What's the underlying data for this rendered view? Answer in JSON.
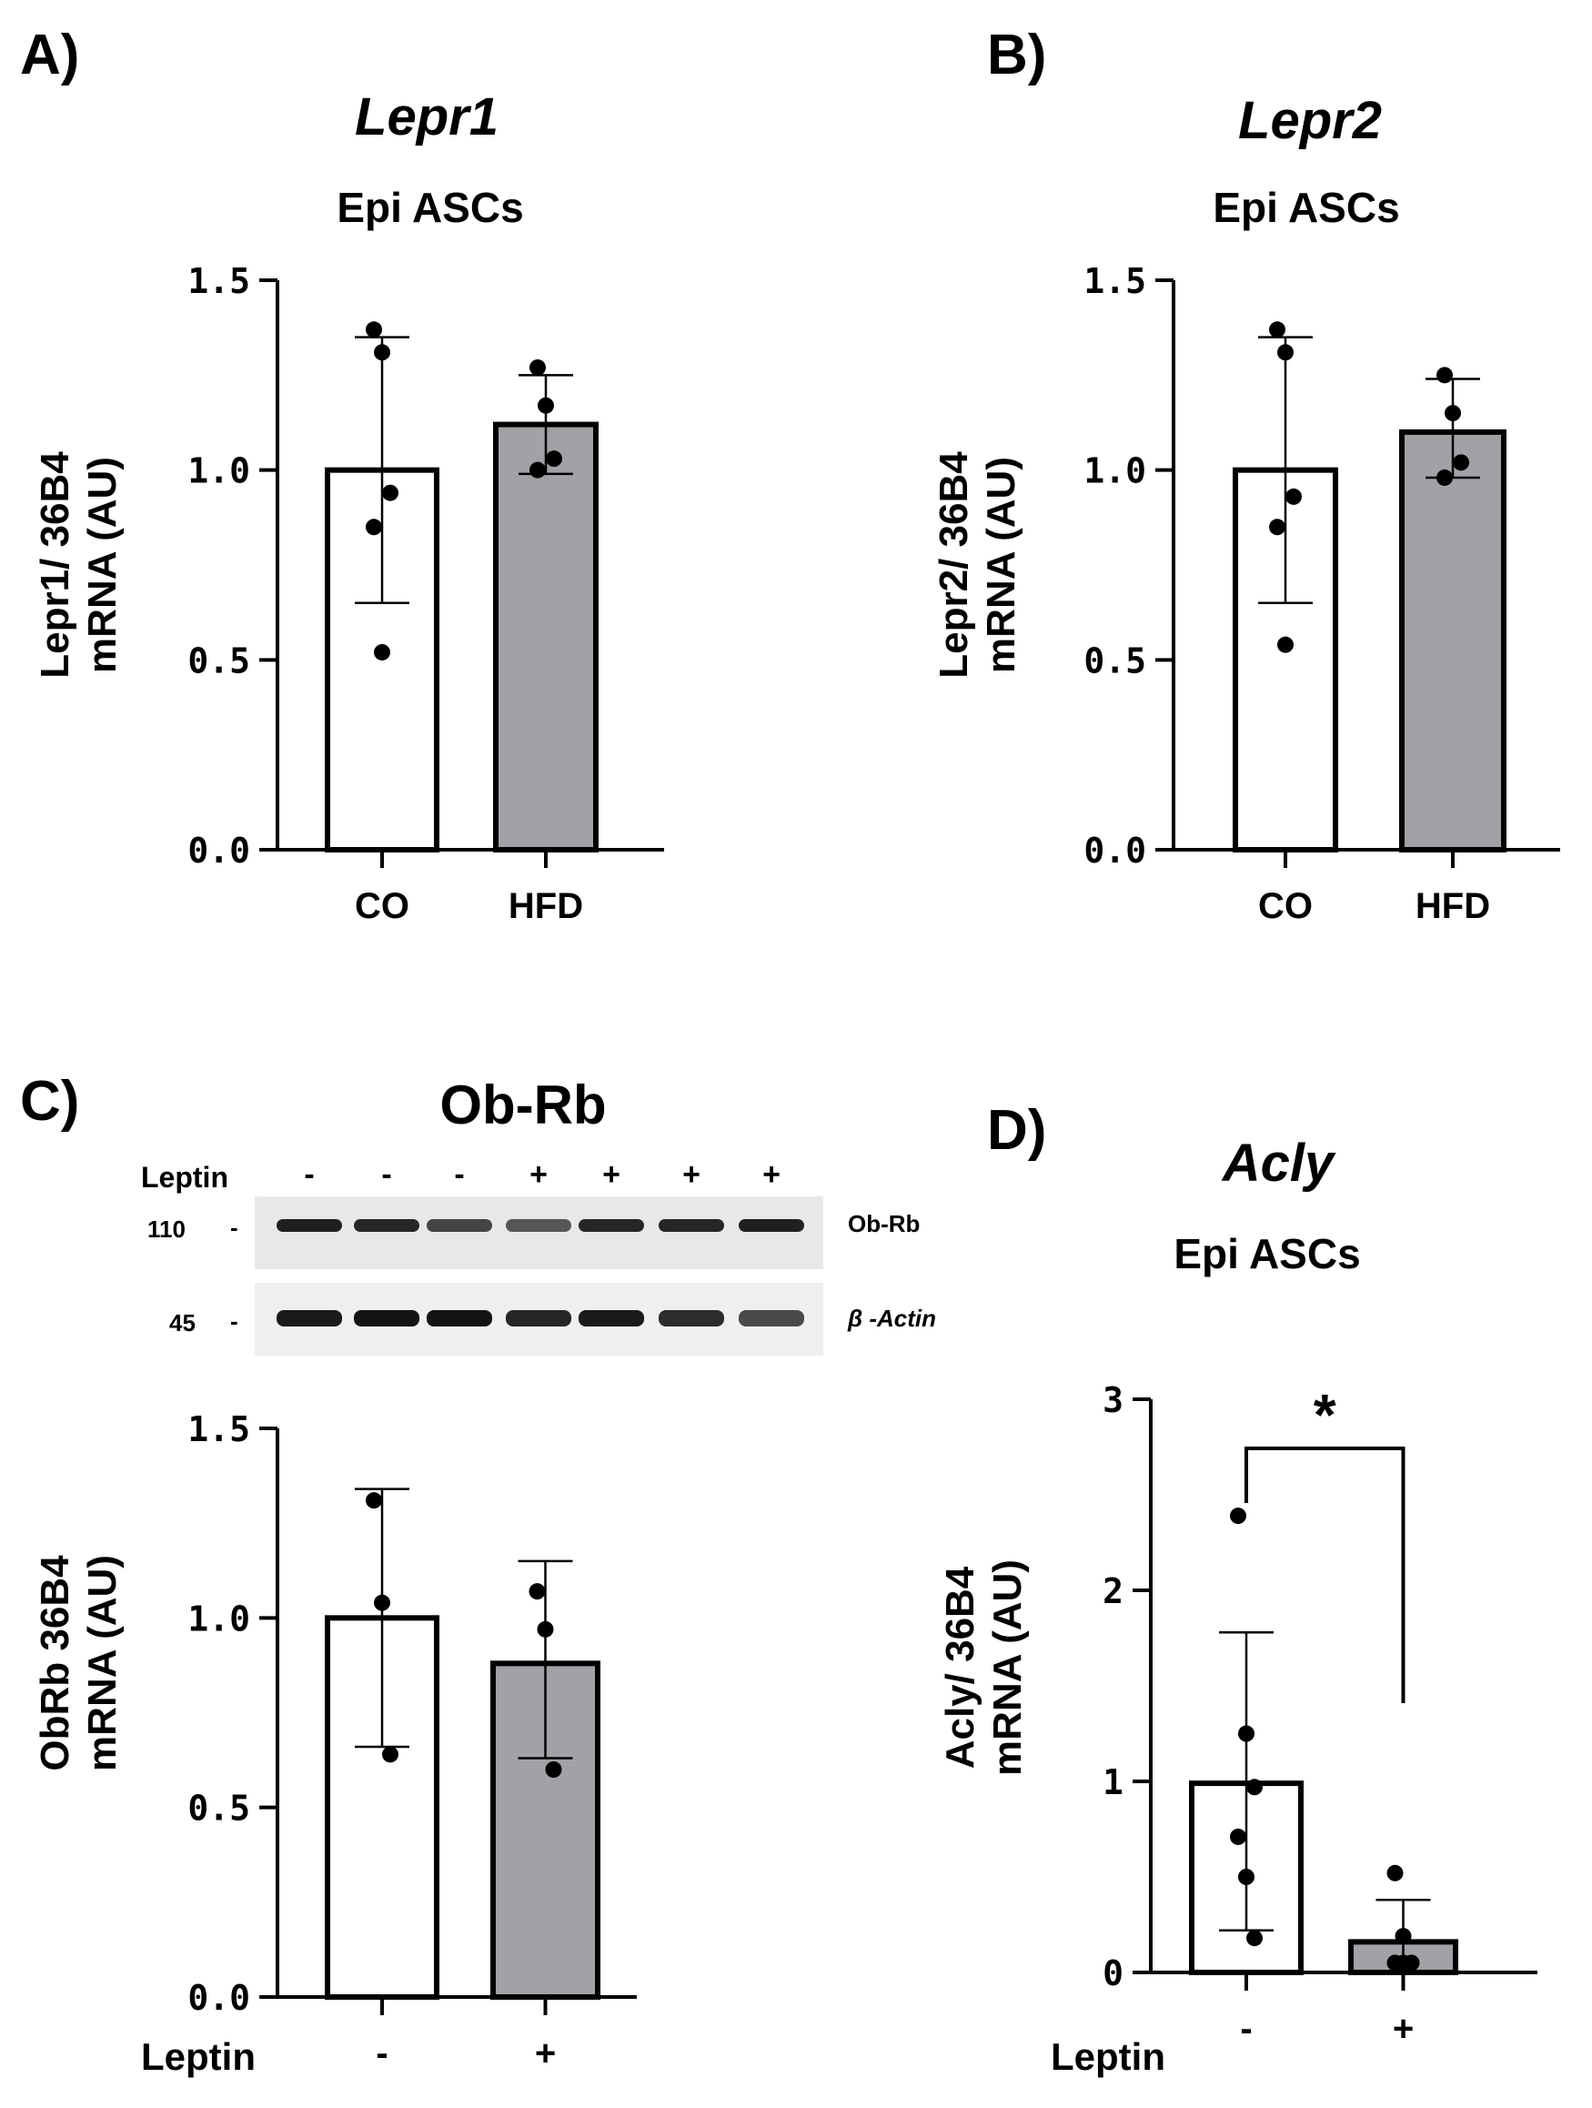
{
  "panels": [
    {
      "letter": "A)",
      "title": "Lepr1",
      "subtitle": "Epi ASCs",
      "chart_data": {
        "type": "bar",
        "categories": [
          "CO",
          "HFD"
        ],
        "values": [
          1.0,
          1.12
        ],
        "error_high": [
          1.35,
          1.25
        ],
        "error_low": [
          0.65,
          0.99
        ],
        "points": [
          [
            1.37,
            1.31,
            0.94,
            0.85,
            0.52
          ],
          [
            1.27,
            1.17,
            1.03,
            1.0
          ]
        ],
        "bar_colors": [
          "#ffffff",
          "#a1a2a6"
        ],
        "ylabel_line1": "Lepr1/ 36B4",
        "ylabel_line2": "mRNA (AU)",
        "xlabel": "",
        "ylim": [
          0,
          1.5
        ],
        "yticks": [
          "0.0",
          "0.5",
          "1.0",
          "1.5"
        ],
        "yticks_values": [
          0,
          0.5,
          1.0,
          1.5
        ],
        "grid": false
      }
    },
    {
      "letter": "B)",
      "title": "Lepr2",
      "subtitle": "Epi ASCs",
      "chart_data": {
        "type": "bar",
        "categories": [
          "CO",
          "HFD"
        ],
        "values": [
          1.0,
          1.1
        ],
        "error_high": [
          1.35,
          1.24
        ],
        "error_low": [
          0.65,
          0.98
        ],
        "points": [
          [
            1.37,
            1.31,
            0.93,
            0.85,
            0.54
          ],
          [
            1.25,
            1.15,
            1.02,
            0.98
          ]
        ],
        "bar_colors": [
          "#ffffff",
          "#a1a2a6"
        ],
        "ylabel_line1": "Lepr2/ 36B4",
        "ylabel_line2": "mRNA (AU)",
        "xlabel": "",
        "ylim": [
          0,
          1.5
        ],
        "yticks": [
          "0.0",
          "0.5",
          "1.0",
          "1.5"
        ],
        "yticks_values": [
          0,
          0.5,
          1.0,
          1.5
        ],
        "grid": false
      }
    },
    {
      "letter": "C)",
      "blot": {
        "title": "Ob-Rb",
        "treatment_label": "Leptin",
        "lanes": [
          "-",
          "-",
          "-",
          "+",
          "+",
          "+",
          "+"
        ],
        "rows": [
          {
            "marker": "110",
            "dash": "-",
            "label": "Ob-Rb",
            "intensity": [
              0.9,
              0.85,
              0.6,
              0.45,
              0.85,
              0.85,
              0.9
            ]
          },
          {
            "marker": "45",
            "dash": "-",
            "label": "β -Actin",
            "intensity": [
              0.95,
              1.0,
              1.0,
              0.85,
              0.95,
              0.8,
              0.55
            ]
          }
        ]
      },
      "chart_data": {
        "type": "bar",
        "categories": [
          "-",
          "+"
        ],
        "xlabel": "Leptin",
        "values": [
          1.0,
          0.88
        ],
        "error_high": [
          1.34,
          1.15
        ],
        "error_low": [
          0.66,
          0.63
        ],
        "points": [
          [
            1.31,
            1.04,
            0.64
          ],
          [
            1.07,
            0.97,
            0.6
          ]
        ],
        "bar_colors": [
          "#ffffff",
          "#a1a2a6"
        ],
        "ylabel_line1": "ObRb 36B4",
        "ylabel_line2": "mRNA (AU)",
        "ylim": [
          0,
          1.5
        ],
        "yticks": [
          "0.0",
          "0.5",
          "1.0",
          "1.5"
        ],
        "yticks_values": [
          0,
          0.5,
          1.0,
          1.5
        ],
        "grid": false
      }
    },
    {
      "letter": "D)",
      "title": "Acly",
      "subtitle": "Epi ASCs",
      "chart_data": {
        "type": "bar",
        "categories": [
          "-",
          "+"
        ],
        "xlabel": "Leptin",
        "values": [
          0.99,
          0.16
        ],
        "error_high": [
          1.78,
          0.38
        ],
        "error_low": [
          0.22,
          0.0
        ],
        "points": [
          [
            2.39,
            1.25,
            0.97,
            0.71,
            0.5,
            0.18
          ],
          [
            0.52,
            0.19,
            0.05,
            0.05,
            0.05
          ]
        ],
        "bar_colors": [
          "#ffffff",
          "#a1a2a6"
        ],
        "ylabel_line1": "Acly/ 36B4",
        "ylabel_line2": "mRNA (AU)",
        "ylim": [
          0,
          3
        ],
        "yticks": [
          "0",
          "1",
          "2",
          "3"
        ],
        "yticks_values": [
          0,
          1,
          2,
          3
        ],
        "grid": false,
        "significance": "*"
      }
    }
  ]
}
